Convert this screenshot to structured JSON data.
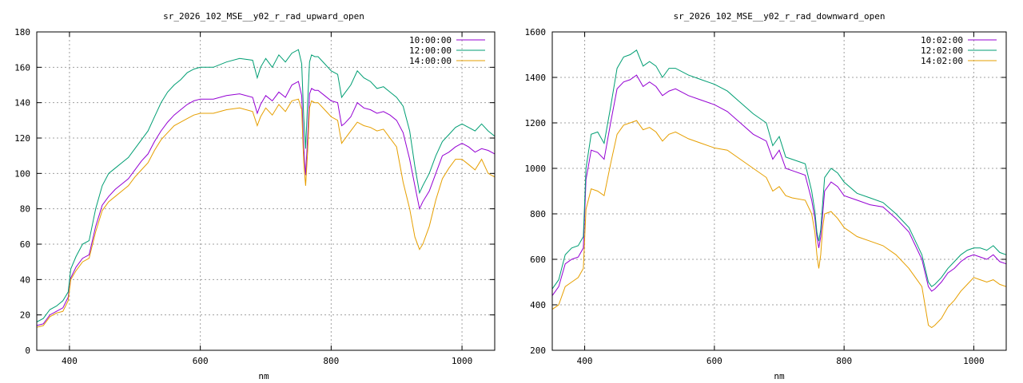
{
  "chart_data": [
    {
      "type": "line",
      "title": "sr_2026_102_MSE__y02_r_rad_upward_open",
      "xlabel": "nm",
      "ylabel": "",
      "xlim": [
        350,
        1050
      ],
      "ylim": [
        0,
        180
      ],
      "xticks": [
        400,
        600,
        800,
        1000
      ],
      "yticks": [
        0,
        20,
        40,
        60,
        80,
        100,
        120,
        140,
        160,
        180
      ],
      "grid": true,
      "legend_position": "top-right",
      "series": [
        {
          "name": "10:00:00",
          "color": "#9400d3",
          "x": [
            350,
            360,
            370,
            380,
            390,
            398,
            402,
            410,
            420,
            430,
            440,
            450,
            460,
            470,
            480,
            490,
            500,
            510,
            520,
            530,
            540,
            550,
            560,
            570,
            580,
            590,
            600,
            620,
            640,
            660,
            680,
            687,
            692,
            700,
            710,
            720,
            730,
            740,
            750,
            755,
            758,
            761,
            764,
            767,
            770,
            775,
            780,
            790,
            800,
            810,
            816,
            820,
            830,
            840,
            850,
            860,
            870,
            880,
            890,
            900,
            910,
            920,
            928,
            935,
            940,
            950,
            960,
            970,
            980,
            990,
            1000,
            1010,
            1020,
            1030,
            1040,
            1050
          ],
          "y": [
            14,
            15,
            20,
            22,
            24,
            30,
            41,
            47,
            52,
            54,
            70,
            82,
            87,
            91,
            94,
            97,
            102,
            107,
            111,
            118,
            124,
            129,
            133,
            136,
            139,
            141,
            142,
            142,
            144,
            145,
            143,
            134,
            139,
            144,
            141,
            146,
            143,
            150,
            152,
            144,
            115,
            99,
            120,
            145,
            148,
            147,
            147,
            144,
            141,
            140,
            127,
            128,
            132,
            140,
            137,
            136,
            134,
            135,
            133,
            130,
            123,
            108,
            93,
            80,
            84,
            90,
            100,
            110,
            112,
            115,
            117,
            115,
            112,
            114,
            113,
            111
          ]
        },
        {
          "name": "12:00:00",
          "color": "#009e73",
          "x": [
            350,
            360,
            370,
            380,
            390,
            398,
            402,
            410,
            420,
            430,
            440,
            450,
            460,
            470,
            480,
            490,
            500,
            510,
            520,
            530,
            540,
            550,
            560,
            570,
            580,
            590,
            600,
            620,
            640,
            660,
            680,
            687,
            692,
            700,
            710,
            720,
            730,
            740,
            750,
            755,
            758,
            761,
            764,
            767,
            770,
            775,
            780,
            790,
            800,
            810,
            816,
            820,
            830,
            840,
            850,
            860,
            870,
            880,
            890,
            900,
            910,
            920,
            928,
            935,
            940,
            950,
            960,
            970,
            980,
            990,
            1000,
            1010,
            1020,
            1030,
            1040,
            1050
          ],
          "y": [
            16,
            18,
            23,
            25,
            28,
            33,
            46,
            53,
            60,
            62,
            80,
            93,
            100,
            103,
            106,
            109,
            114,
            119,
            124,
            132,
            140,
            146,
            150,
            153,
            157,
            159,
            160,
            160,
            163,
            165,
            164,
            154,
            160,
            165,
            160,
            167,
            163,
            168,
            170,
            162,
            132,
            114,
            140,
            163,
            167,
            166,
            166,
            162,
            158,
            156,
            143,
            145,
            150,
            158,
            154,
            152,
            148,
            149,
            146,
            143,
            138,
            124,
            104,
            89,
            93,
            100,
            110,
            118,
            122,
            126,
            128,
            126,
            124,
            128,
            124,
            121
          ]
        },
        {
          "name": "14:00:00",
          "color": "#e69f00",
          "x": [
            350,
            360,
            370,
            380,
            390,
            398,
            402,
            410,
            420,
            430,
            440,
            450,
            460,
            470,
            480,
            490,
            500,
            510,
            520,
            530,
            540,
            550,
            560,
            570,
            580,
            590,
            600,
            620,
            640,
            660,
            680,
            687,
            692,
            700,
            710,
            720,
            730,
            740,
            750,
            755,
            758,
            761,
            764,
            767,
            770,
            775,
            780,
            790,
            800,
            810,
            816,
            820,
            830,
            840,
            850,
            860,
            870,
            880,
            890,
            900,
            910,
            920,
            928,
            935,
            940,
            950,
            960,
            970,
            980,
            990,
            1000,
            1010,
            1020,
            1030,
            1040,
            1050
          ],
          "y": [
            13,
            14,
            19,
            21,
            22,
            28,
            40,
            45,
            50,
            52,
            67,
            79,
            84,
            87,
            90,
            93,
            98,
            102,
            106,
            113,
            119,
            123,
            127,
            129,
            131,
            133,
            134,
            134,
            136,
            137,
            135,
            127,
            132,
            137,
            133,
            139,
            135,
            141,
            142,
            136,
            106,
            93,
            112,
            137,
            141,
            140,
            140,
            136,
            132,
            130,
            117,
            119,
            124,
            129,
            127,
            126,
            124,
            125,
            120,
            115,
            95,
            80,
            64,
            57,
            60,
            70,
            85,
            97,
            103,
            108,
            108,
            105,
            102,
            108,
            100,
            98
          ]
        }
      ]
    },
    {
      "type": "line",
      "title": "sr_2026_102_MSE__y02_r_rad_downward_open",
      "xlabel": "nm",
      "ylabel": "",
      "xlim": [
        350,
        1050
      ],
      "ylim": [
        200,
        1600
      ],
      "xticks": [
        400,
        600,
        800,
        1000
      ],
      "yticks": [
        200,
        400,
        600,
        800,
        1000,
        1200,
        1400,
        1600
      ],
      "grid": true,
      "legend_position": "top-right",
      "series": [
        {
          "name": "10:02:00",
          "color": "#9400d3",
          "x": [
            350,
            360,
            370,
            380,
            390,
            398,
            402,
            410,
            420,
            430,
            440,
            450,
            460,
            470,
            480,
            490,
            500,
            510,
            520,
            530,
            540,
            560,
            580,
            600,
            620,
            640,
            660,
            680,
            690,
            700,
            710,
            720,
            740,
            750,
            755,
            758,
            761,
            764,
            767,
            770,
            780,
            790,
            800,
            820,
            840,
            860,
            880,
            900,
            910,
            920,
            930,
            935,
            940,
            950,
            960,
            970,
            980,
            990,
            1000,
            1010,
            1020,
            1030,
            1040,
            1050
          ],
          "y": [
            440,
            480,
            580,
            600,
            610,
            650,
            950,
            1080,
            1070,
            1040,
            1200,
            1350,
            1380,
            1390,
            1410,
            1360,
            1380,
            1360,
            1320,
            1340,
            1350,
            1320,
            1300,
            1280,
            1250,
            1200,
            1150,
            1120,
            1040,
            1080,
            1000,
            990,
            970,
            860,
            780,
            700,
            650,
            700,
            800,
            900,
            940,
            920,
            880,
            860,
            840,
            830,
            780,
            720,
            660,
            600,
            480,
            460,
            470,
            500,
            540,
            560,
            590,
            610,
            620,
            610,
            600,
            620,
            590,
            580
          ]
        },
        {
          "name": "12:02:00",
          "color": "#009e73",
          "x": [
            350,
            360,
            370,
            380,
            390,
            398,
            402,
            410,
            420,
            430,
            440,
            450,
            460,
            470,
            480,
            490,
            500,
            510,
            520,
            530,
            540,
            560,
            580,
            600,
            620,
            640,
            660,
            680,
            690,
            700,
            710,
            720,
            740,
            750,
            755,
            758,
            761,
            764,
            767,
            770,
            780,
            790,
            800,
            820,
            840,
            860,
            880,
            900,
            910,
            920,
            930,
            935,
            940,
            950,
            960,
            970,
            980,
            990,
            1000,
            1010,
            1020,
            1030,
            1040,
            1050
          ],
          "y": [
            470,
            510,
            620,
            650,
            660,
            700,
            1000,
            1150,
            1160,
            1110,
            1270,
            1440,
            1490,
            1500,
            1520,
            1450,
            1470,
            1450,
            1400,
            1440,
            1440,
            1410,
            1390,
            1370,
            1340,
            1290,
            1240,
            1200,
            1100,
            1140,
            1050,
            1040,
            1020,
            900,
            810,
            720,
            680,
            730,
            850,
            960,
            1000,
            980,
            940,
            890,
            870,
            850,
            800,
            740,
            680,
            620,
            500,
            480,
            490,
            520,
            560,
            590,
            620,
            640,
            650,
            650,
            640,
            660,
            630,
            620
          ]
        },
        {
          "name": "14:02:00",
          "color": "#e69f00",
          "x": [
            350,
            360,
            370,
            380,
            390,
            398,
            402,
            410,
            420,
            430,
            440,
            450,
            460,
            470,
            480,
            490,
            500,
            510,
            520,
            530,
            540,
            560,
            580,
            600,
            620,
            640,
            660,
            680,
            690,
            700,
            710,
            720,
            740,
            750,
            755,
            758,
            761,
            764,
            767,
            770,
            780,
            790,
            800,
            820,
            840,
            860,
            880,
            900,
            910,
            920,
            930,
            935,
            940,
            950,
            960,
            970,
            980,
            990,
            1000,
            1010,
            1020,
            1030,
            1040,
            1050
          ],
          "y": [
            380,
            400,
            480,
            500,
            520,
            560,
            820,
            910,
            900,
            880,
            1020,
            1150,
            1190,
            1200,
            1210,
            1170,
            1180,
            1160,
            1120,
            1150,
            1160,
            1130,
            1110,
            1090,
            1080,
            1040,
            1000,
            960,
            900,
            920,
            880,
            870,
            860,
            800,
            720,
            620,
            560,
            620,
            740,
            800,
            810,
            780,
            740,
            700,
            680,
            660,
            620,
            560,
            520,
            480,
            310,
            300,
            310,
            340,
            390,
            420,
            460,
            490,
            520,
            510,
            500,
            510,
            490,
            480
          ]
        }
      ]
    }
  ]
}
